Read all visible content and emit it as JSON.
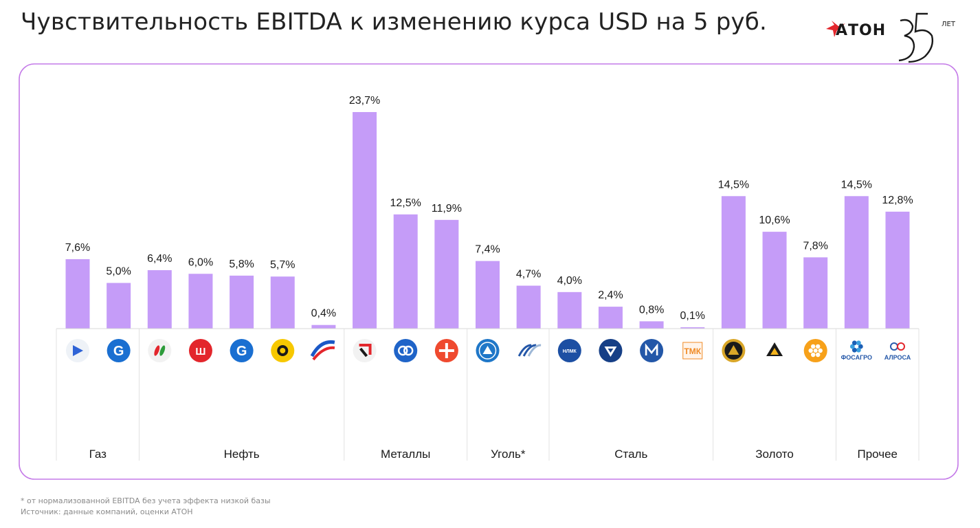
{
  "header": {
    "title": "Чувствительность EBITDA к изменению курса USD на 5 руб."
  },
  "logo": {
    "text": "АТОН",
    "years_label": "ЛЕТ"
  },
  "colors": {
    "bar": "#c59cf8",
    "frame": "#c47ae8",
    "accent_red": "#e3262c"
  },
  "footnotes": {
    "asterisk_note": "* от нормализованной EBITDA без учета эффекта низкой базы",
    "source": "Источник: данные компаний, оценки АТОН"
  },
  "chart_data": {
    "type": "bar",
    "title": "Чувствительность EBITDA к изменению курса USD на 5 руб.",
    "ylim": [
      0,
      25
    ],
    "grid": false,
    "value_labels": [
      "7,6%",
      "5,0%",
      "6,4%",
      "6,0%",
      "5,8%",
      "5,7%",
      "0,4%",
      "23,7%",
      "12,5%",
      "11,9%",
      "7,4%",
      "4,7%",
      "4,0%",
      "2,4%",
      "0,8%",
      "0,1%",
      "14,5%",
      "10,6%",
      "7,8%",
      "14,5%",
      "12,8%"
    ],
    "values": [
      7.6,
      5.0,
      6.4,
      6.0,
      5.8,
      5.7,
      0.4,
      23.7,
      12.5,
      11.9,
      7.4,
      4.7,
      4.0,
      2.4,
      0.8,
      0.1,
      14.5,
      10.6,
      7.8,
      14.5,
      12.8
    ],
    "company_logos": [
      "dark-blue-arrow-logo",
      "blue-g-flame-logo",
      "green-red-drops-logo",
      "red-lk-logo",
      "blue-g-flame-logo",
      "yellow-drop-logo",
      "russia-flag-swoosh-logo",
      "red-black-angle-logo",
      "blue-knot-logo",
      "orange-star-logo",
      "blue-triangle-logo",
      "blue-stripes-logo",
      "blue-nlmk-logo",
      "blue-diamond-logo",
      "blue-m-logo",
      "orange-tmk-logo",
      "gold-triangle-circle-logo",
      "black-gold-triangle-logo",
      "orange-flower-logo",
      "blue-flower-logo",
      "blue-red-rings-logo"
    ],
    "logo_captions": [
      "",
      "",
      "",
      "",
      "",
      "",
      "",
      "",
      "",
      "",
      "",
      "",
      "",
      "",
      "",
      "",
      "",
      "",
      "",
      "ФОСАГРО",
      "АЛРОСА"
    ],
    "groups": [
      {
        "label": "Газ",
        "count": 2
      },
      {
        "label": "Нефть",
        "count": 5
      },
      {
        "label": "Металлы",
        "count": 3
      },
      {
        "label": "Уголь*",
        "count": 2
      },
      {
        "label": "Сталь",
        "count": 4
      },
      {
        "label": "Золото",
        "count": 3
      },
      {
        "label": "Прочее",
        "count": 2
      }
    ]
  }
}
